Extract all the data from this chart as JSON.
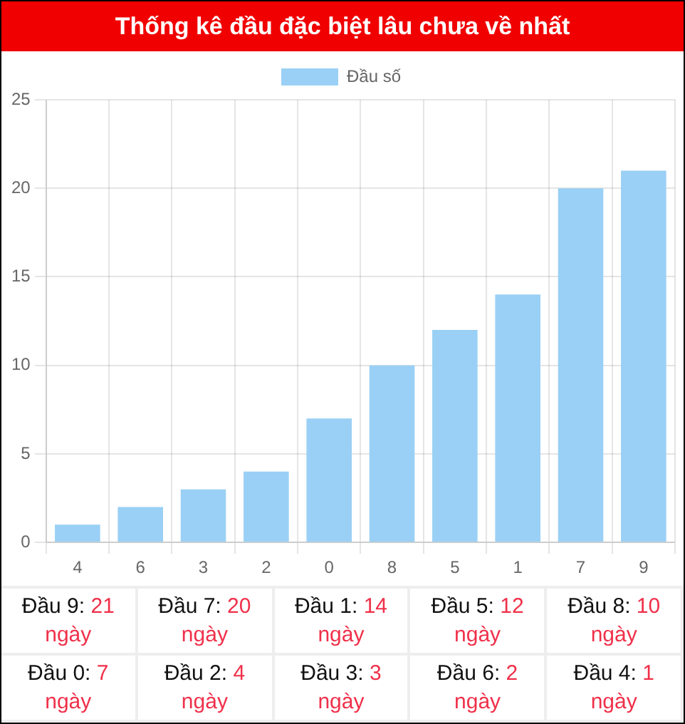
{
  "chart_data": {
    "type": "bar",
    "title": "Thống kê đầu đặc biệt lâu chưa về nhất",
    "categories": [
      "4",
      "6",
      "3",
      "2",
      "0",
      "8",
      "5",
      "1",
      "7",
      "9"
    ],
    "series": [
      {
        "name": "Đầu số",
        "color": "#9ad0f5",
        "values": [
          1,
          2,
          3,
          4,
          7,
          10,
          12,
          14,
          20,
          21
        ]
      }
    ],
    "ylim": [
      0,
      25
    ],
    "yticks": [
      0,
      5,
      10,
      15,
      20,
      25
    ],
    "grid": true,
    "legend": "top",
    "annotations": [
      "Đầu 9: 21 ngày",
      "Đầu 7: 20 ngày",
      "Đầu 1: 14 ngày",
      "Đầu 5: 12 ngày",
      "Đầu 8: 10 ngày",
      "Đầu 0: 7 ngày",
      "Đầu 2: 4 ngày",
      "Đầu 3: 3 ngày",
      "Đầu 6: 2 ngày",
      "Đầu 4: 1 ngày"
    ]
  }
}
